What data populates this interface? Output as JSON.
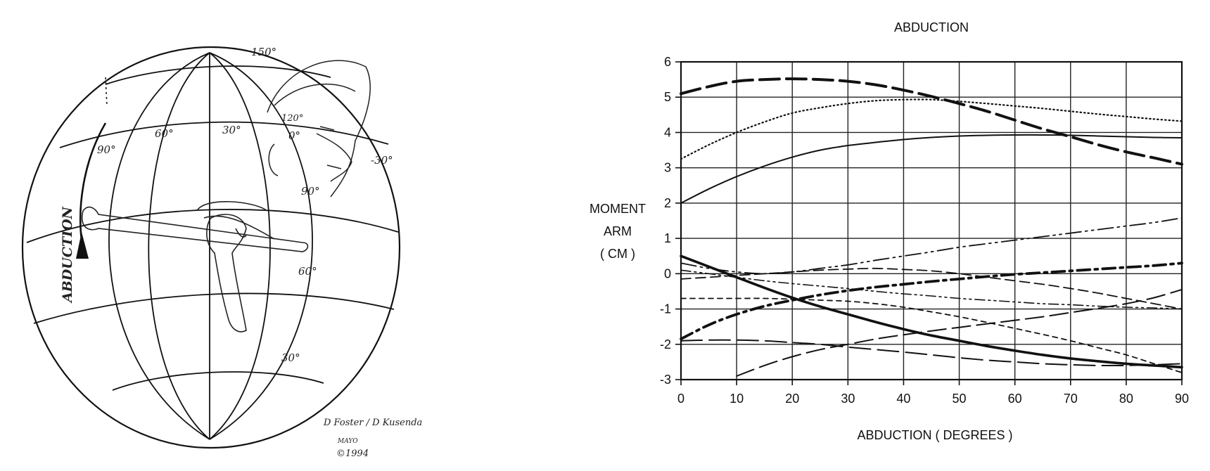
{
  "globe": {
    "meridian_labels": [
      "150°",
      "120°",
      "90°",
      "60°",
      "30°",
      "0°",
      "-30°"
    ],
    "parallel_labels": [
      "90°",
      "60°",
      "30°"
    ],
    "arrow_label": "ABDUCTION",
    "signature_line1": "D Foster / D Kusenda",
    "signature_line2": "MAYO",
    "signature_line3": "©1994"
  },
  "chart_data": {
    "type": "line",
    "title": "ABDUCTION",
    "xlabel": "ABDUCTION ( DEGREES )",
    "ylabel_lines": [
      "MOMENT",
      "ARM",
      "( CM )"
    ],
    "xlim": [
      0,
      90
    ],
    "ylim": [
      -3,
      6
    ],
    "xticks": [
      0,
      10,
      20,
      30,
      40,
      50,
      60,
      70,
      80,
      90
    ],
    "yticks": [
      -3,
      -2,
      -1,
      0,
      1,
      2,
      3,
      4,
      5,
      6
    ],
    "grid": true,
    "legend": "none",
    "series": [
      {
        "style": "long-dash-heavy",
        "x": [
          0,
          5,
          10,
          15,
          20,
          25,
          30,
          35,
          40,
          45,
          50,
          55,
          60,
          65,
          70,
          75,
          80,
          85,
          90
        ],
        "y": [
          5.1,
          5.3,
          5.45,
          5.5,
          5.52,
          5.5,
          5.45,
          5.35,
          5.2,
          5.02,
          4.82,
          4.6,
          4.35,
          4.1,
          3.88,
          3.65,
          3.45,
          3.28,
          3.1
        ]
      },
      {
        "style": "dotted",
        "x": [
          0,
          5,
          10,
          15,
          20,
          25,
          30,
          35,
          40,
          45,
          50,
          55,
          60,
          65,
          70,
          75,
          80,
          85,
          90
        ],
        "y": [
          3.25,
          3.65,
          4.0,
          4.3,
          4.55,
          4.7,
          4.82,
          4.9,
          4.93,
          4.93,
          4.88,
          4.82,
          4.75,
          4.68,
          4.6,
          4.52,
          4.45,
          4.38,
          4.32
        ]
      },
      {
        "style": "solid-thin",
        "x": [
          0,
          5,
          10,
          15,
          20,
          25,
          30,
          35,
          40,
          45,
          50,
          55,
          60,
          65,
          70,
          75,
          80,
          85,
          90
        ],
        "y": [
          2.0,
          2.4,
          2.75,
          3.05,
          3.3,
          3.5,
          3.63,
          3.72,
          3.8,
          3.86,
          3.9,
          3.92,
          3.93,
          3.93,
          3.92,
          3.9,
          3.88,
          3.86,
          3.85
        ]
      },
      {
        "style": "dash-dot-dot",
        "x": [
          0,
          5,
          10,
          15,
          20,
          25,
          30,
          35,
          40,
          45,
          50,
          55,
          60,
          65,
          70,
          75,
          80,
          85,
          90
        ],
        "y": [
          0.3,
          0.15,
          0.05,
          0.0,
          0.05,
          0.15,
          0.25,
          0.38,
          0.5,
          0.62,
          0.75,
          0.85,
          0.95,
          1.05,
          1.15,
          1.25,
          1.35,
          1.45,
          1.58
        ]
      },
      {
        "style": "dash-dot-heavy",
        "x": [
          0,
          5,
          10,
          15,
          20,
          25,
          30,
          35,
          40,
          45,
          50,
          55,
          60,
          65,
          70,
          75,
          80,
          85,
          90
        ],
        "y": [
          -1.85,
          -1.45,
          -1.15,
          -0.92,
          -0.75,
          -0.6,
          -0.48,
          -0.38,
          -0.3,
          -0.22,
          -0.15,
          -0.08,
          -0.02,
          0.03,
          0.08,
          0.13,
          0.18,
          0.23,
          0.3
        ]
      },
      {
        "style": "solid-heavy",
        "x": [
          0,
          5,
          10,
          15,
          20,
          25,
          30,
          35,
          40,
          45,
          50,
          55,
          60,
          65,
          70,
          75,
          80,
          85,
          90
        ],
        "y": [
          0.5,
          0.2,
          -0.1,
          -0.4,
          -0.68,
          -0.93,
          -1.15,
          -1.37,
          -1.57,
          -1.75,
          -1.9,
          -2.05,
          -2.18,
          -2.3,
          -2.4,
          -2.48,
          -2.55,
          -2.6,
          -2.65
        ]
      },
      {
        "style": "short-dash",
        "x": [
          0,
          5,
          10,
          15,
          20,
          25,
          30,
          35,
          40,
          45,
          50,
          55,
          60,
          65,
          70,
          75,
          80,
          85,
          90
        ],
        "y": [
          -0.7,
          -0.7,
          -0.7,
          -0.7,
          -0.72,
          -0.75,
          -0.78,
          -0.85,
          -0.95,
          -1.08,
          -1.22,
          -1.38,
          -1.55,
          -1.72,
          -1.9,
          -2.1,
          -2.3,
          -2.55,
          -2.8
        ]
      },
      {
        "style": "dash-dot-dot-thin",
        "x": [
          0,
          5,
          10,
          15,
          20,
          25,
          30,
          35,
          40,
          45,
          50,
          55,
          60,
          65,
          70,
          75,
          80,
          85,
          90
        ],
        "y": [
          0.1,
          0.0,
          -0.1,
          -0.2,
          -0.28,
          -0.35,
          -0.42,
          -0.5,
          -0.57,
          -0.63,
          -0.7,
          -0.75,
          -0.8,
          -0.85,
          -0.88,
          -0.92,
          -0.95,
          -0.97,
          -1.0
        ]
      },
      {
        "style": "medium-dash",
        "x": [
          0,
          5,
          10,
          15,
          20,
          25,
          30,
          35,
          40,
          45,
          50,
          55,
          60,
          65,
          70,
          75,
          80,
          85,
          90
        ],
        "y": [
          -0.15,
          -0.1,
          -0.05,
          0.0,
          0.05,
          0.1,
          0.13,
          0.15,
          0.12,
          0.08,
          0.0,
          -0.1,
          -0.2,
          -0.3,
          -0.42,
          -0.55,
          -0.7,
          -0.85,
          -1.0
        ]
      },
      {
        "style": "long-dash",
        "x": [
          0,
          5,
          10,
          15,
          20,
          25,
          30,
          35,
          40,
          45,
          50,
          55,
          60,
          65,
          70,
          75,
          80,
          85,
          90
        ],
        "y": [
          -1.9,
          -1.88,
          -1.88,
          -1.9,
          -1.95,
          -2.0,
          -2.08,
          -2.15,
          -2.22,
          -2.3,
          -2.38,
          -2.45,
          -2.5,
          -2.55,
          -2.58,
          -2.6,
          -2.6,
          -2.58,
          -2.55
        ]
      },
      {
        "style": "long-dash-rising",
        "x": [
          10,
          15,
          20,
          25,
          30,
          35,
          40,
          45,
          50,
          55,
          60,
          65,
          70,
          75,
          80,
          85,
          90
        ],
        "y": [
          -2.9,
          -2.6,
          -2.35,
          -2.15,
          -2.0,
          -1.85,
          -1.73,
          -1.62,
          -1.52,
          -1.42,
          -1.32,
          -1.22,
          -1.1,
          -0.98,
          -0.85,
          -0.68,
          -0.45
        ]
      }
    ]
  }
}
